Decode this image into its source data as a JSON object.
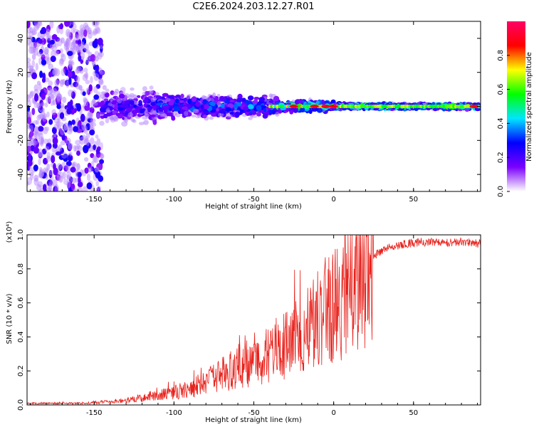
{
  "title": "C2E6.2024.203.12.27.R01",
  "chart_data": [
    {
      "type": "heatmap",
      "xlabel": "Height of straight line (km)",
      "ylabel": "Frequency (Hz)",
      "xlim": [
        -192,
        92
      ],
      "ylim": [
        -50,
        50
      ],
      "xticks": [
        -150,
        -100,
        -50,
        0,
        50
      ],
      "yticks": [
        -40,
        -20,
        0,
        20,
        40
      ],
      "xtick_labels": [
        "-150",
        "-100",
        "-50",
        "0",
        "50"
      ],
      "ytick_labels": [
        "-40",
        "-20",
        "0",
        "20",
        "40"
      ],
      "colorbar": {
        "label": "Normalized spectral amplitude",
        "range": [
          0,
          1
        ],
        "ticks": [
          0.0,
          0.2,
          0.4,
          0.6,
          0.8
        ],
        "tick_labels": [
          "0.0",
          "0.2",
          "0.4",
          "0.6",
          "0.8"
        ],
        "colors": [
          "#ffffff",
          "#7b00ff",
          "#0000ff",
          "#00e5ff",
          "#00ff00",
          "#ffff00",
          "#ff0000",
          "#ff0066"
        ]
      },
      "regions": [
        {
          "x_from": -192,
          "x_to": -145,
          "freq_spread": 50,
          "amplitude": 0.15
        },
        {
          "x_from": -145,
          "x_to": -110,
          "freq_spread": 12,
          "amplitude": 0.25
        },
        {
          "x_from": -110,
          "x_to": -35,
          "freq_spread": 8,
          "amplitude": 0.35
        },
        {
          "x_from": -35,
          "x_to": 0,
          "freq_spread": 4,
          "amplitude": 0.55
        },
        {
          "x_from": 0,
          "x_to": 92,
          "freq_spread": 2,
          "amplitude": 0.6
        }
      ]
    },
    {
      "type": "line",
      "xlabel": "Height of straight line (km)",
      "ylabel": "SNR (10 * v/v)",
      "y_multiplier": "(x10⁴)",
      "xlim": [
        -192,
        92
      ],
      "ylim": [
        0,
        1.0
      ],
      "xticks": [
        -150,
        -100,
        -50,
        0,
        50
      ],
      "yticks": [
        0.0,
        0.2,
        0.4,
        0.6,
        0.8,
        1.0
      ],
      "xtick_labels": [
        "-150",
        "-100",
        "-50",
        "0",
        "50"
      ],
      "ytick_labels": [
        "0.0",
        "0.2",
        "0.4",
        "0.6",
        "0.8",
        "1.0"
      ],
      "color": "#e8221c",
      "series": [
        {
          "x": [
            -192,
            -180,
            -170,
            -160,
            -150,
            -140,
            -130,
            -120,
            -115,
            -110,
            -105,
            -100,
            -95,
            -90,
            -85,
            -80,
            -75,
            -70,
            -65,
            -60,
            -55,
            -50,
            -45,
            -40,
            -35,
            -30,
            -25,
            -20,
            -15,
            -10,
            -5,
            0,
            5,
            10,
            15,
            20,
            25,
            30,
            35,
            40,
            45,
            50,
            55,
            60,
            65,
            70,
            75,
            80,
            85,
            92
          ],
          "y": [
            0.01,
            0.01,
            0.01,
            0.01,
            0.015,
            0.02,
            0.03,
            0.04,
            0.05,
            0.06,
            0.07,
            0.08,
            0.09,
            0.1,
            0.12,
            0.14,
            0.16,
            0.19,
            0.21,
            0.23,
            0.25,
            0.26,
            0.29,
            0.32,
            0.35,
            0.38,
            0.42,
            0.45,
            0.5,
            0.55,
            0.6,
            0.62,
            0.66,
            0.7,
            0.76,
            0.83,
            0.88,
            0.91,
            0.93,
            0.94,
            0.95,
            0.955,
            0.96,
            0.96,
            0.96,
            0.96,
            0.96,
            0.96,
            0.96,
            0.95
          ]
        }
      ]
    }
  ]
}
